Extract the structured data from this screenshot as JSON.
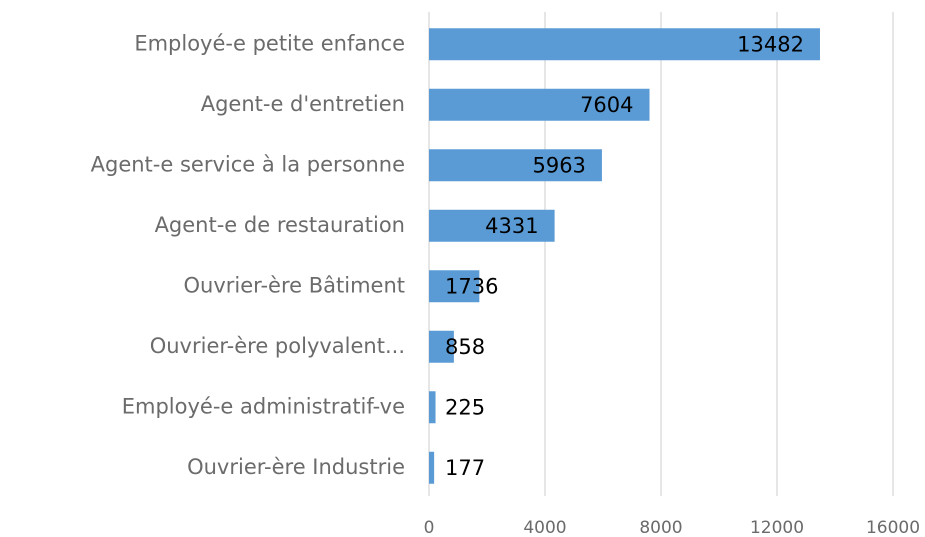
{
  "chart_data": {
    "type": "barh",
    "categories": [
      "Employé-e petite enfance",
      "Agent-e d'entretien",
      "Agent-e service à la personne",
      "Agent-e de restauration",
      "Ouvrier-ère Bâtiment",
      "Ouvrier-ère polyvalent...",
      "Employé-e administratif-ve",
      "Ouvrier-ère Industrie"
    ],
    "values": [
      13482,
      7604,
      5963,
      4331,
      1736,
      858,
      225,
      177
    ],
    "color": "#5b9bd5",
    "xlim": [
      0,
      16000
    ],
    "xticks": [
      0,
      4000,
      8000,
      12000,
      16000
    ],
    "grid": true
  }
}
